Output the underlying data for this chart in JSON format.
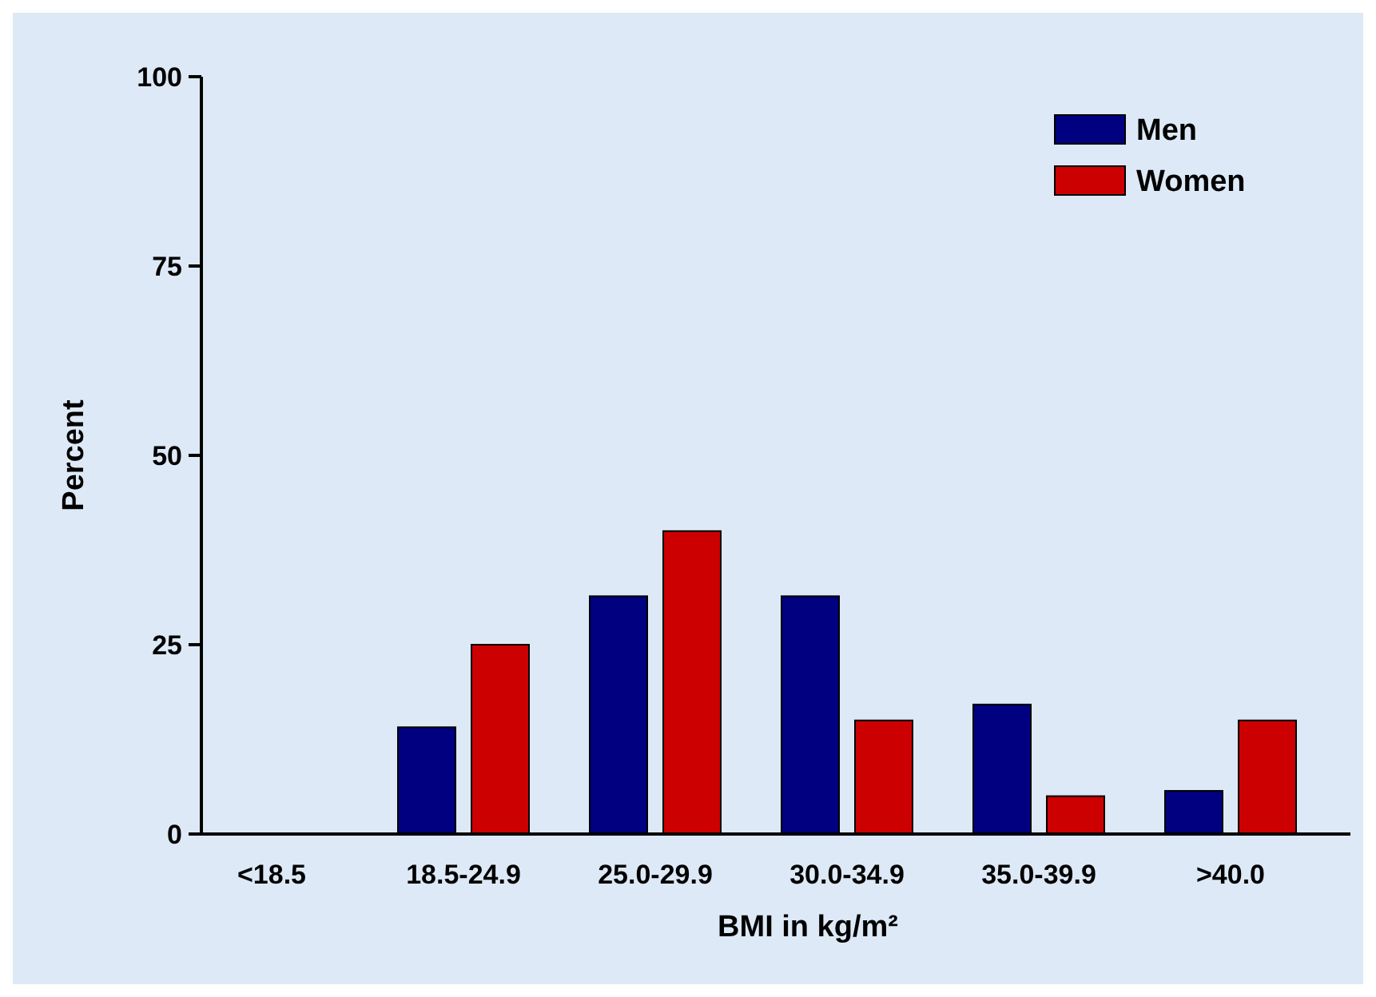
{
  "chart_data": {
    "type": "bar",
    "xlabel": "BMI in kg/m²",
    "ylabel": "Percent",
    "categories": [
      "<18.5",
      "18.5-24.9",
      "25.0-29.9",
      "30.0-34.9",
      "35.0-39.9",
      ">40.0"
    ],
    "series": [
      {
        "name": "Men",
        "color": "#000080",
        "values": [
          0,
          14.1,
          31.4,
          31.4,
          17.1,
          5.7
        ]
      },
      {
        "name": "Women",
        "color": "#cc0000",
        "values": [
          0,
          25,
          40,
          15,
          5,
          15
        ]
      }
    ],
    "ylim": [
      0,
      100
    ],
    "yticks": [
      0,
      25,
      50,
      75,
      100
    ],
    "grid": false,
    "legend": "top right"
  }
}
